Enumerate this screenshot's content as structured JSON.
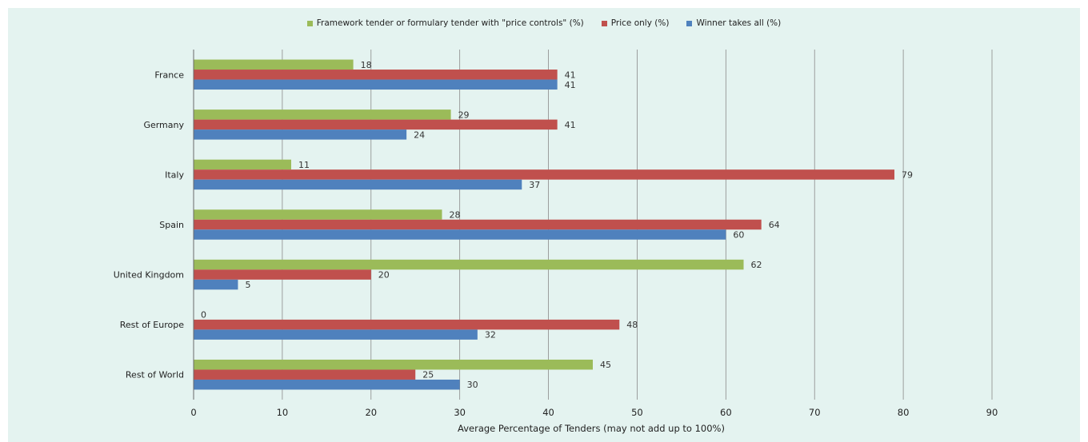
{
  "chart_data": {
    "type": "bar",
    "orientation": "horizontal",
    "categories": [
      "France",
      "Germany",
      "Italy",
      "Spain",
      "United Kingdom",
      "Rest of Europe",
      "Rest of World"
    ],
    "series": [
      {
        "name": "Framework tender or formulary tender with \"price controls\" (%)",
        "color": "#9bbb59",
        "values": [
          18,
          29,
          11,
          28,
          62,
          0,
          45
        ]
      },
      {
        "name": "Price only (%)",
        "color": "#c0504d",
        "values": [
          41,
          41,
          79,
          64,
          20,
          48,
          25
        ]
      },
      {
        "name": "Winner takes all (%)",
        "color": "#4f81bd",
        "values": [
          41,
          24,
          37,
          60,
          5,
          32,
          30
        ]
      }
    ],
    "xlabel": "Average Percentage of Tenders (may not add up to 100%)",
    "ylabel": "",
    "xlim": [
      0,
      90
    ],
    "xticks": [
      0,
      10,
      20,
      30,
      40,
      50,
      60,
      70,
      80,
      90
    ],
    "grid": "vertical",
    "legend_position": "top-center"
  }
}
